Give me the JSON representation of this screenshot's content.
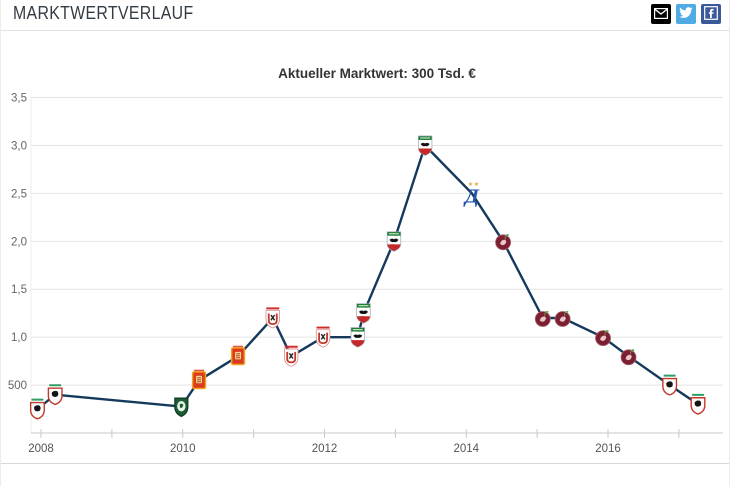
{
  "header": {
    "title": "MARKTWERTVERLAUF"
  },
  "share": {
    "email_icon": "envelope-icon",
    "twitter_icon": "twitter-bird-icon",
    "facebook_icon": "facebook-f-icon",
    "email_bg": "#000000",
    "twitter_bg": "#50abe4",
    "facebook_bg": "#3b5998"
  },
  "chart": {
    "title": "Aktueller Marktwert: 300 Tsd. €"
  },
  "chart_data": {
    "type": "line",
    "title": "Aktueller Marktwert: 300 Tsd. €",
    "line_color": "#15395c",
    "grid_color": "#e4e4e4",
    "axis_color": "#c9c9c9",
    "label_color": "#666666",
    "ylim": [
      0,
      3.5
    ],
    "xlim": [
      2007.85,
      2017.6
    ],
    "grid": true,
    "y_ticks": [
      {
        "v": 0.5,
        "label": "500"
      },
      {
        "v": 1.0,
        "label": "1,0"
      },
      {
        "v": 1.5,
        "label": "1,5"
      },
      {
        "v": 2.0,
        "label": "2,0"
      },
      {
        "v": 2.5,
        "label": "2,5"
      },
      {
        "v": 3.0,
        "label": "3,0"
      },
      {
        "v": 3.5,
        "label": "3,5"
      }
    ],
    "x_ticks": [
      2008,
      2009,
      2010,
      2011,
      2012,
      2013,
      2014,
      2015,
      2016,
      2017
    ],
    "x_labels": [
      {
        "year": 2008,
        "label": "2008"
      },
      {
        "year": 2010,
        "label": "2010"
      },
      {
        "year": 2012,
        "label": "2012"
      },
      {
        "year": 2014,
        "label": "2014"
      },
      {
        "year": 2016,
        "label": "2016"
      }
    ],
    "points": [
      {
        "x": 2007.95,
        "value_tsd": 250,
        "club": "club-crest-white-red"
      },
      {
        "x": 2008.2,
        "value_tsd": 400,
        "club": "club-crest-white-red"
      },
      {
        "x": 2009.98,
        "value_tsd": 275,
        "club": "club-crest-green"
      },
      {
        "x": 2010.23,
        "value_tsd": 550,
        "club": "club-crest-red-orange"
      },
      {
        "x": 2010.78,
        "value_tsd": 800,
        "club": "club-crest-red-orange"
      },
      {
        "x": 2011.27,
        "value_tsd": 1200,
        "club": "club-crest-horseshoe"
      },
      {
        "x": 2011.53,
        "value_tsd": 800,
        "club": "club-crest-horseshoe"
      },
      {
        "x": 2011.98,
        "value_tsd": 1000,
        "club": "club-crest-horseshoe"
      },
      {
        "x": 2012.47,
        "value_tsd": 1000,
        "club": "rubin-kazan-old"
      },
      {
        "x": 2012.55,
        "value_tsd": 1250,
        "club": "rubin-kazan-old"
      },
      {
        "x": 2012.98,
        "value_tsd": 2000,
        "club": "rubin-kazan-old"
      },
      {
        "x": 2013.42,
        "value_tsd": 3000,
        "club": "rubin-kazan-old"
      },
      {
        "x": 2014.08,
        "value_tsd": 2500,
        "club": "dynamo-moscow"
      },
      {
        "x": 2014.52,
        "value_tsd": 2000,
        "club": "rubin-kazan-new"
      },
      {
        "x": 2015.08,
        "value_tsd": 1200,
        "club": "rubin-kazan-new"
      },
      {
        "x": 2015.36,
        "value_tsd": 1200,
        "club": "rubin-kazan-new"
      },
      {
        "x": 2015.93,
        "value_tsd": 1000,
        "club": "rubin-kazan-new"
      },
      {
        "x": 2016.29,
        "value_tsd": 800,
        "club": "rubin-kazan-new"
      },
      {
        "x": 2016.87,
        "value_tsd": 500,
        "club": "club-crest-white-red"
      },
      {
        "x": 2017.27,
        "value_tsd": 300,
        "club": "club-crest-white-red"
      }
    ]
  }
}
